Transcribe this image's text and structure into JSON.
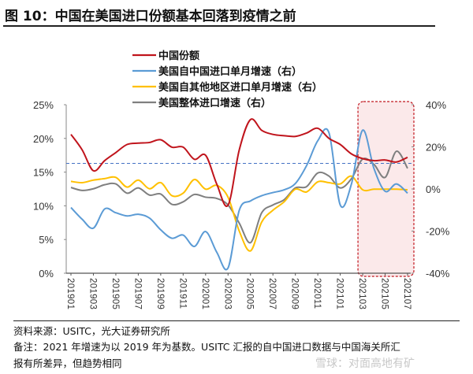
{
  "title": "图 10：中国在美国进口份额基本回落到疫情之前",
  "source": "资料来源：USITC，光大证券研究所",
  "note_line1": "备注：2021 年增速为以 2019 年为基数。USITC 汇报的自中国进口数据与中国海关所汇",
  "note_line2": "报有所差异，但趋势相同",
  "watermark": "雪球：对面高地有矿",
  "chart_data": {
    "type": "line",
    "title": "",
    "x": [
      "201901",
      "201902",
      "201903",
      "201904",
      "201905",
      "201906",
      "201907",
      "201908",
      "201909",
      "201910",
      "201911",
      "201912",
      "202001",
      "202002",
      "202003",
      "202004",
      "202005",
      "202006",
      "202007",
      "202008",
      "202009",
      "202010",
      "202011",
      "202012",
      "202101",
      "202102",
      "202103",
      "202104",
      "202105",
      "202106",
      "202107"
    ],
    "x_tick_labels": [
      "201901",
      "201903",
      "201905",
      "201907",
      "201909",
      "201911",
      "202001",
      "202003",
      "202005",
      "202007",
      "202009",
      "202011",
      "202101",
      "202103",
      "202105",
      "202107"
    ],
    "left_axis": {
      "ylim": [
        0,
        25
      ],
      "ticks": [
        "0%",
        "5%",
        "10%",
        "15%",
        "20%",
        "25%"
      ]
    },
    "right_axis": {
      "ylim": [
        -40,
        40
      ],
      "ticks": [
        "-40%",
        "-20%",
        "0%",
        "20%",
        "40%"
      ]
    },
    "legend_position": "top-center",
    "series": [
      {
        "name": "中国份额",
        "axis": "left",
        "color": "#c0141c",
        "values": [
          20.6,
          18.3,
          15.2,
          16.7,
          17.9,
          19.1,
          19.3,
          19.4,
          19.8,
          18.7,
          18.7,
          16.9,
          17.5,
          13.2,
          10.1,
          18.3,
          22.8,
          21.2,
          20.6,
          20.4,
          20.3,
          20.8,
          21.5,
          20.0,
          19.1,
          17.7,
          17.0,
          16.7,
          16.8,
          16.5,
          17.2
        ]
      },
      {
        "name": "美国自中国进口单月增速（右）",
        "axis": "right",
        "color": "#5b9bd5",
        "values": [
          -8.8,
          -14.4,
          -18.6,
          -9.5,
          -11.3,
          -12.8,
          -12.0,
          -13.8,
          -19.4,
          -23.4,
          -21.9,
          -27.3,
          -20.2,
          -30.1,
          -37.5,
          -10.1,
          -5.7,
          -3.2,
          -1.7,
          -0.4,
          2.6,
          11.1,
          22.9,
          26.6,
          -7.6,
          2.4,
          27.9,
          9.8,
          -1.1,
          2.4,
          -2.0
        ]
      },
      {
        "name": "美国自其他地区进口单月增速（右）",
        "axis": "right",
        "color": "#ffc000",
        "values": [
          3.6,
          3.0,
          4.2,
          4.9,
          5.5,
          0.9,
          4.2,
          0.1,
          3.0,
          -3.2,
          -2.0,
          4.5,
          -0.1,
          1.7,
          -3.9,
          -20.0,
          -29.4,
          -15.7,
          -10.1,
          -6.1,
          -0.1,
          -1.4,
          3.4,
          3.0,
          2.4,
          6.1,
          -0.4,
          -0.1,
          -0.1,
          -0.1,
          -0.4
        ]
      },
      {
        "name": "美国整体进口增速（右）",
        "axis": "right",
        "color": "#7f7f7f",
        "values": [
          0.7,
          -0.7,
          0.1,
          2.0,
          2.4,
          -2.0,
          0.5,
          -2.9,
          -2.4,
          -7.3,
          -6.1,
          -2.6,
          -3.9,
          -4.5,
          -7.6,
          -16.2,
          -25.5,
          -11.3,
          -7.6,
          -5.1,
          0.5,
          1.1,
          7.6,
          6.1,
          0.5,
          4.9,
          14.2,
          11.7,
          5.5,
          17.9,
          9.8
        ]
      }
    ],
    "reference_line": {
      "axis": "left",
      "value": 16.3,
      "style": "dashed",
      "color": "#4472c4"
    },
    "highlight_region": {
      "from": "202103",
      "to": "202107",
      "fill": "#fbe9ea",
      "border": "#c0141c",
      "style": "dashed"
    }
  }
}
